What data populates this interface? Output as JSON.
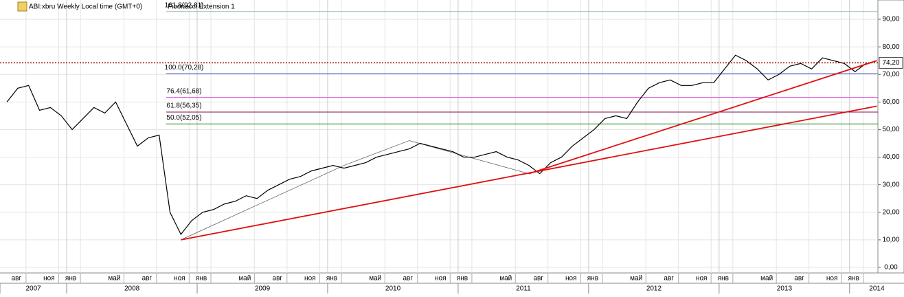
{
  "chart_data": {
    "type": "line",
    "title": "ABI:xbru Weekly Local time (GMT+0)",
    "study": "Fibonacci Extension 1",
    "x": [
      "2007-07",
      "2007-08",
      "2007-09",
      "2007-10",
      "2007-11",
      "2007-12",
      "2008-01",
      "2008-02",
      "2008-03",
      "2008-04",
      "2008-05",
      "2008-06",
      "2008-07",
      "2008-08",
      "2008-09",
      "2008-10",
      "2008-11",
      "2008-12",
      "2009-01",
      "2009-02",
      "2009-03",
      "2009-04",
      "2009-05",
      "2009-06",
      "2009-07",
      "2009-08",
      "2009-09",
      "2009-10",
      "2009-11",
      "2009-12",
      "2010-01",
      "2010-02",
      "2010-03",
      "2010-04",
      "2010-05",
      "2010-06",
      "2010-07",
      "2010-08",
      "2010-09",
      "2010-10",
      "2010-11",
      "2010-12",
      "2011-01",
      "2011-02",
      "2011-03",
      "2011-04",
      "2011-05",
      "2011-06",
      "2011-07",
      "2011-08",
      "2011-09",
      "2011-10",
      "2011-11",
      "2011-12",
      "2012-01",
      "2012-02",
      "2012-03",
      "2012-04",
      "2012-05",
      "2012-06",
      "2012-07",
      "2012-08",
      "2012-09",
      "2012-10",
      "2012-11",
      "2012-12",
      "2013-01",
      "2013-02",
      "2013-03",
      "2013-04",
      "2013-05",
      "2013-06",
      "2013-07",
      "2013-08",
      "2013-09",
      "2013-10",
      "2013-11",
      "2013-12",
      "2014-01",
      "2014-02"
    ],
    "series": [
      {
        "name": "ABI:xbru",
        "color": "#000000",
        "values": [
          60,
          65,
          66,
          57,
          58,
          55,
          50,
          54,
          58,
          56,
          60,
          52,
          44,
          47,
          48,
          20,
          12,
          17,
          20,
          21,
          23,
          24,
          26,
          25,
          28,
          30,
          32,
          33,
          35,
          36,
          37,
          36,
          37,
          38,
          40,
          41,
          42,
          43,
          45,
          44,
          43,
          42,
          40,
          40,
          41,
          42,
          40,
          39,
          37,
          34,
          38,
          40,
          44,
          47,
          50,
          54,
          55,
          54,
          60,
          65,
          67,
          68,
          66,
          66,
          67,
          67,
          72,
          77,
          75,
          72,
          68,
          70,
          73,
          74,
          72,
          76,
          75,
          74,
          71,
          74
        ]
      }
    ],
    "last_price": {
      "value": 74.2,
      "label": "74,20"
    },
    "fib_levels": [
      {
        "value": 92.81,
        "label": "161.8(92,81)",
        "color": "#9ab8bf"
      },
      {
        "value": 70.28,
        "label": "100.0(70,28)",
        "color": "#3b4fd8"
      },
      {
        "value": 61.68,
        "label": "76.4(61,68)",
        "color": "#e040e0"
      },
      {
        "value": 56.35,
        "label": "61.8(56,35)",
        "color": "#7a1050"
      },
      {
        "value": 52.05,
        "label": "50.0(52,05)",
        "color": "#1a8a1a"
      }
    ],
    "fib_points": [
      [
        "2008-11",
        10
      ],
      [
        "2010-02",
        37
      ],
      [
        "2010-08",
        46
      ],
      [
        "2011-07",
        34
      ]
    ],
    "trendlines": [
      {
        "start": [
          "2008-11",
          10
        ],
        "end": [
          "2014-03",
          58.5
        ],
        "color": "#e01010"
      },
      {
        "start": [
          "2011-07",
          34
        ],
        "end": [
          "2014-03",
          75
        ],
        "color": "#e01010"
      }
    ],
    "ylim": [
      -2,
      97
    ],
    "yticks": [
      {
        "value": 0,
        "label": "0,00"
      },
      {
        "value": 10,
        "label": "10,00"
      },
      {
        "value": 20,
        "label": "20,00"
      },
      {
        "value": 30,
        "label": "30,00"
      },
      {
        "value": 40,
        "label": "40,00"
      },
      {
        "value": 50,
        "label": "50,00"
      },
      {
        "value": 60,
        "label": "60,00"
      },
      {
        "value": 70,
        "label": "70,00"
      },
      {
        "value": 80,
        "label": "80,00"
      },
      {
        "value": 90,
        "label": "90,00"
      }
    ],
    "xticks": [
      {
        "value": "2007-08",
        "label": "авг"
      },
      {
        "value": "2007-11",
        "label": "ноя"
      },
      {
        "value": "2008-01",
        "label": "янв"
      },
      {
        "value": "2008-05",
        "label": "май"
      },
      {
        "value": "2008-08",
        "label": "авг"
      },
      {
        "value": "2008-11",
        "label": "ноя"
      },
      {
        "value": "2009-01",
        "label": "янв"
      },
      {
        "value": "2009-05",
        "label": "май"
      },
      {
        "value": "2009-08",
        "label": "авг"
      },
      {
        "value": "2009-11",
        "label": "ноя"
      },
      {
        "value": "2010-01",
        "label": "янв"
      },
      {
        "value": "2010-05",
        "label": "май"
      },
      {
        "value": "2010-08",
        "label": "авг"
      },
      {
        "value": "2010-11",
        "label": "ноя"
      },
      {
        "value": "2011-01",
        "label": "янв"
      },
      {
        "value": "2011-05",
        "label": "май"
      },
      {
        "value": "2011-08",
        "label": "авг"
      },
      {
        "value": "2011-11",
        "label": "ноя"
      },
      {
        "value": "2012-01",
        "label": "янв"
      },
      {
        "value": "2012-05",
        "label": "май"
      },
      {
        "value": "2012-08",
        "label": "авг"
      },
      {
        "value": "2012-11",
        "label": "ноя"
      },
      {
        "value": "2013-01",
        "label": "янв"
      },
      {
        "value": "2013-05",
        "label": "май"
      },
      {
        "value": "2013-08",
        "label": "авг"
      },
      {
        "value": "2013-11",
        "label": "ноя"
      },
      {
        "value": "2014-01",
        "label": "янв"
      }
    ],
    "years": [
      2007,
      2008,
      2009,
      2010,
      2011,
      2012,
      2013,
      2014
    ],
    "grid": true
  }
}
